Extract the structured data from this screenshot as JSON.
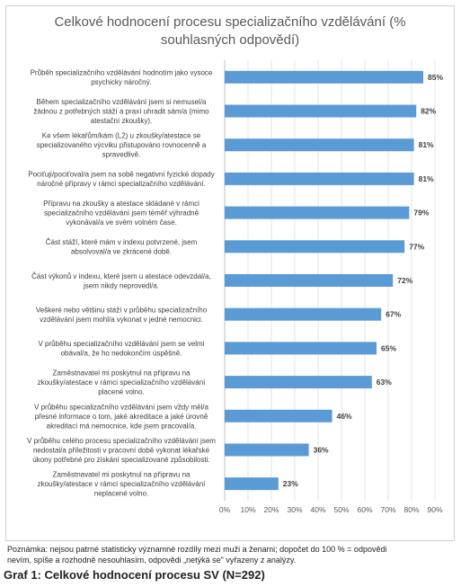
{
  "chart_data": {
    "type": "bar",
    "orientation": "horizontal",
    "title_lines": [
      "Celkové hodnocení procesu specializačního vzdělávání (%",
      "souhlasných odpovědí)"
    ],
    "categories": [
      [
        "Průběh specializačního vzdělávání hodnotím jako vysoce",
        "psychicky náročný."
      ],
      [
        "Během specializačního vzdělávání jsem si nemusel/a",
        "žádnou z potřebných stáží a praxí uhradit sám/a (mimo",
        "atestační zkoušky)."
      ],
      [
        "Ke všem lékařům/kám (L2) u zkoušky/atestace se",
        "specializovaného výcviku přistupováno rovnocenně a",
        "spravedlivě."
      ],
      [
        "Pociťuji/pociťoval/a jsem na sobě negativní fyzické dopady",
        "náročné přípravy v rámci specializačního vzdělávání."
      ],
      [
        "Přípravu na zkoušky a atestace skládané v rámci",
        "specializačního vzdělávání  jsem téměř výhradně",
        "vykonával/a ve svém volném čase."
      ],
      [
        "Část stáží, které mám v indexu potvrzené, jsem",
        "absolvoval/a ve zkrácené době."
      ],
      [
        "Část výkonů v indexu, které jsem u atestace odevzdal/a,",
        "jsem nikdy neprovedl/a."
      ],
      [
        "Veškeré nebo většinu stáží v průběhu  specializačního",
        "vzdělávání jsem mohl/a vykonat v jedné nemocnici."
      ],
      [
        "V průběhu specializačního vzdělávání jsem se velmi",
        "obával/a, že ho nedokončím úspěšně."
      ],
      [
        "Zaměstnavatel mi poskytnul na přípravu na",
        "zkoušky/atestace v rámci specializačního vzdělávání",
        "placené volno."
      ],
      [
        "V průběhu specializačního vzdělávání jsem vždy měl/a",
        "přesné informace o tom, jaké akreditace a jaké úrovně",
        "akreditací má nemocnice, kde jsem pracoval/a."
      ],
      [
        "V průběhu celého procesu specializačního vzdělávání jsem",
        "nedostal/a příležitosti v pracovní době vykonat lékařské",
        "úkony potřebné pro získání specializované způsobilosti."
      ],
      [
        "Zaměstnavatel mi poskytnul na přípravu na",
        "zkoušky/atestace v rámci specializačního vzdělávání",
        "neplacené volno."
      ]
    ],
    "values": [
      85,
      82,
      81,
      81,
      79,
      77,
      72,
      67,
      65,
      63,
      46,
      36,
      23
    ],
    "value_labels": [
      "85%",
      "82%",
      "81%",
      "81%",
      "79%",
      "77%",
      "72%",
      "67%",
      "65%",
      "63%",
      "46%",
      "36%",
      "23%"
    ],
    "x_ticks": [
      "0%",
      "10%",
      "20%",
      "30%",
      "40%",
      "50%",
      "60%",
      "70%",
      "80%",
      "90%"
    ],
    "xlim": [
      0,
      90
    ],
    "bar_color": "#5b9bd5",
    "grid": true
  },
  "note_lines": [
    "Poznámka: nejsou patrné statisticky významné rozdíly mezi muži a ženami; dopočet do 100 % = odpovědi",
    "nevím, spíše a rozhodně nesouhlasím, odpovědi „netýká se\" vyřazeny z analýzy."
  ],
  "caption": "Graf 1: Celkové hodnocení procesu SV (N=292)"
}
